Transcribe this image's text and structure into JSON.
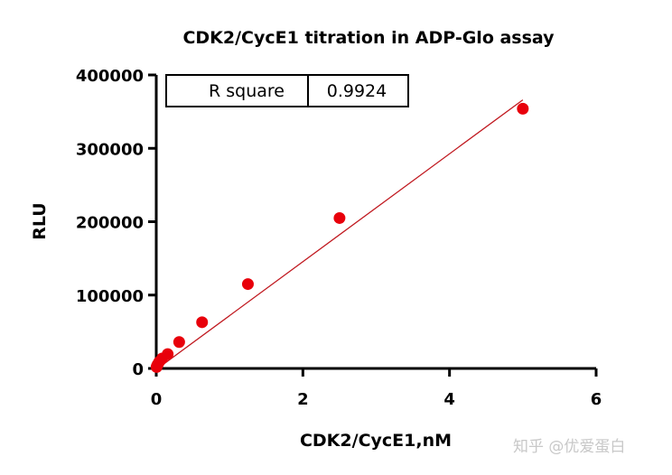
{
  "watermark": "知乎 @优爱蛋白",
  "colors": {
    "points": "#e8000b",
    "fit_line": "#c0181f",
    "axis": "#000000"
  },
  "chart_data": {
    "type": "scatter",
    "title": "CDK2/CycE1 titration in ADP-Glo assay",
    "xlabel": "CDK2/CycE1,nM",
    "ylabel": "RLU",
    "xlim": [
      0,
      6
    ],
    "ylim": [
      0,
      400000
    ],
    "x_ticks": [
      0,
      2,
      4,
      6
    ],
    "x_tick_labels": [
      "0",
      "2",
      "4",
      "6"
    ],
    "y_ticks": [
      0,
      100000,
      200000,
      300000,
      400000
    ],
    "y_tick_labels": [
      "0",
      "100000",
      "200000",
      "300000",
      "400000"
    ],
    "grid": false,
    "series": [
      {
        "x": [
          0.005,
          0.01,
          0.02,
          0.04,
          0.08,
          0.156,
          0.3125,
          0.625,
          1.25,
          2.5,
          5.0
        ],
        "y": [
          2000,
          3500,
          5500,
          9000,
          13500,
          19500,
          36000,
          63000,
          115000,
          205000,
          354000
        ]
      }
    ],
    "fit_line": {
      "x": [
        0,
        5.0
      ],
      "y": [
        -1500,
        366000
      ]
    },
    "stats_box": {
      "label": "R square",
      "value": "0.9924",
      "position": "top-left"
    }
  }
}
